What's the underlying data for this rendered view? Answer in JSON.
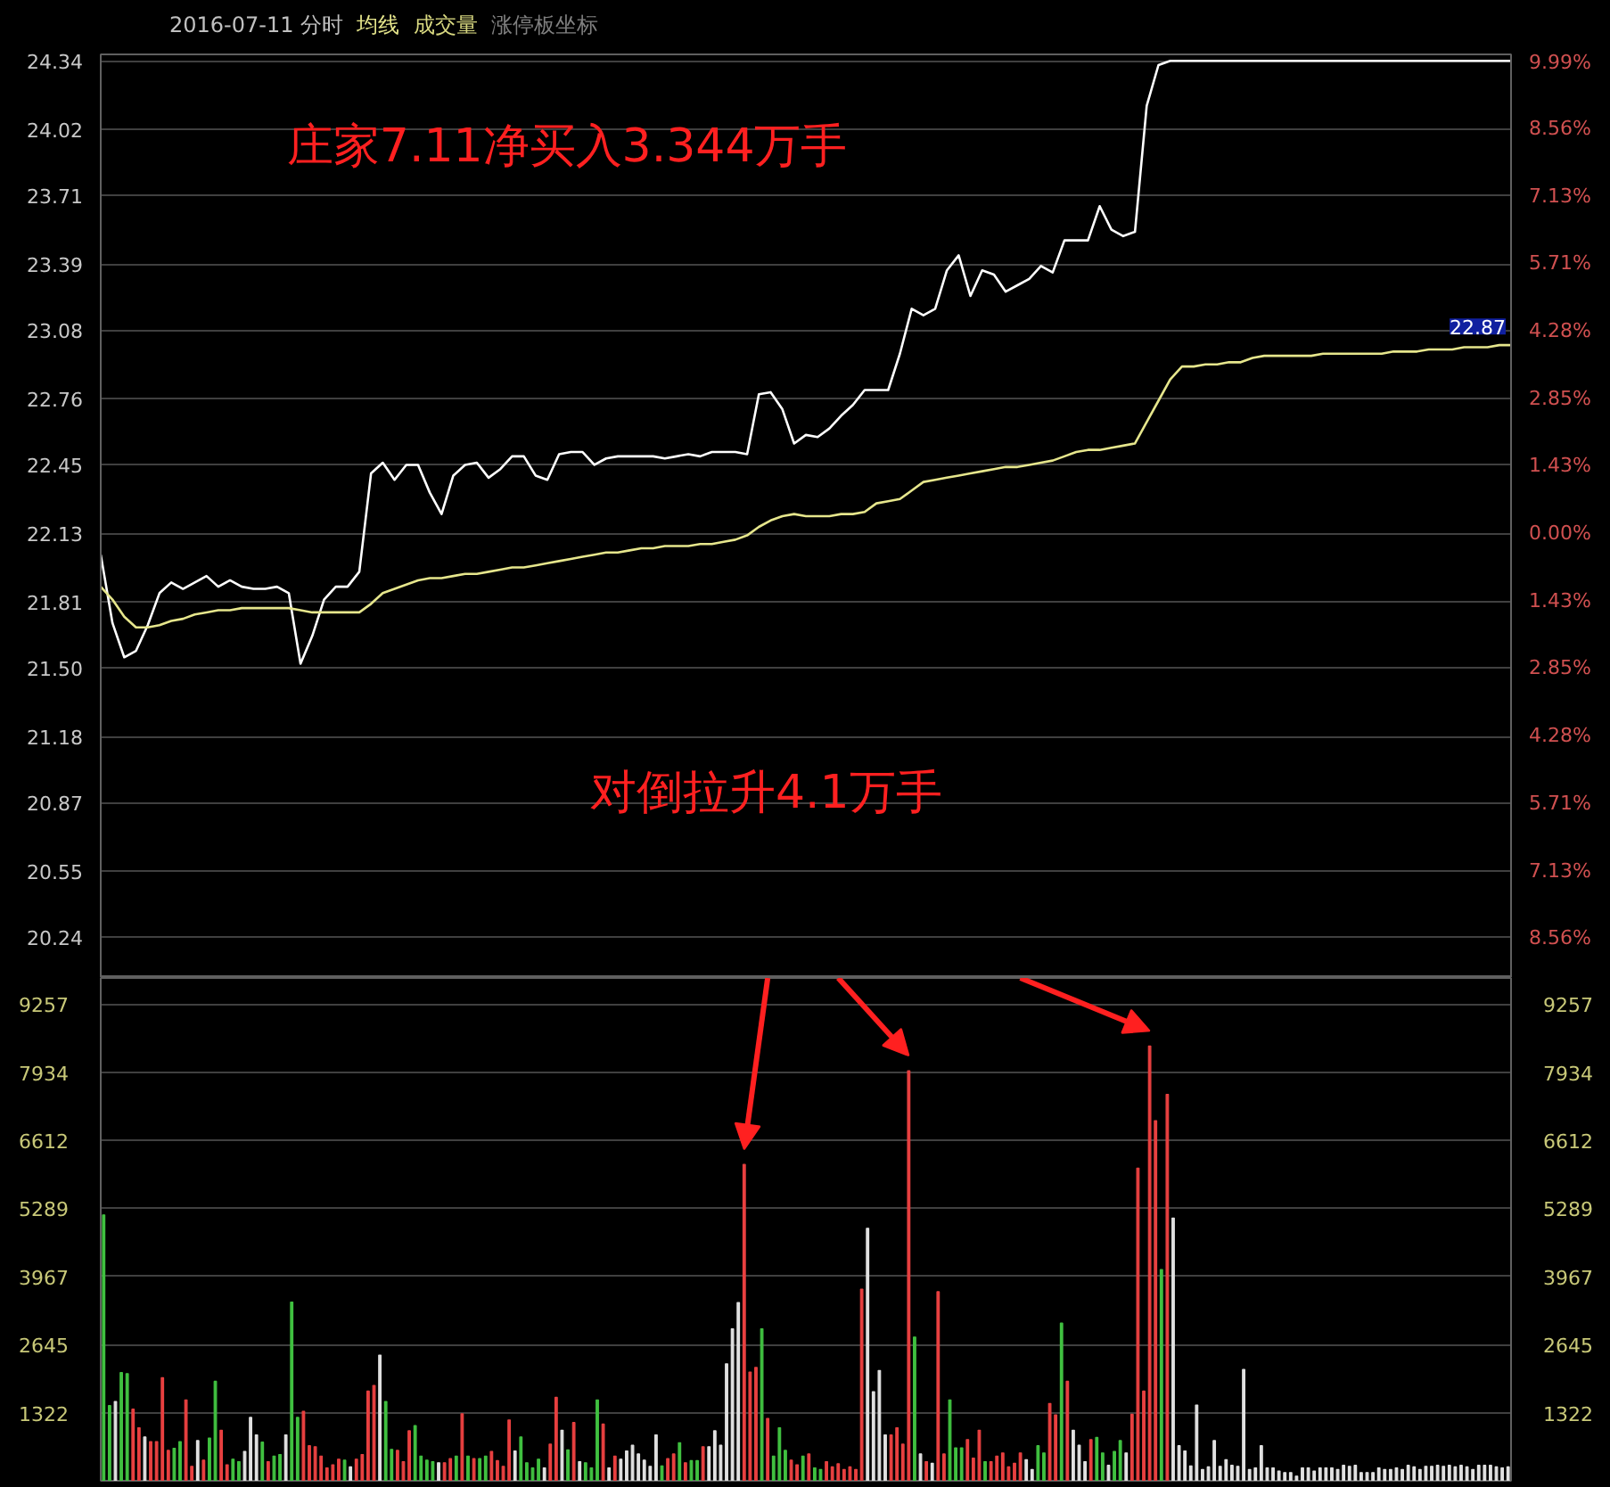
{
  "chart_data": [
    {
      "type": "line",
      "title": "2016-07-11 分时",
      "annotations": [
        "庄家7.11净买入3.344万手",
        "对倒拉升4.1万手",
        "涨停板坐标",
        "22.87"
      ],
      "categories": [
        null,
        null,
        null,
        null,
        null,
        null,
        null,
        null,
        null,
        null,
        null,
        null,
        null,
        null,
        null,
        null,
        null,
        null,
        null,
        null,
        null,
        null,
        null,
        null,
        null,
        null,
        null,
        null,
        null,
        null,
        null,
        null,
        null,
        null,
        null,
        null,
        null,
        null,
        null,
        null,
        null,
        null,
        null,
        null,
        null,
        null,
        null,
        null,
        null,
        null,
        null,
        null,
        null,
        null,
        null,
        null,
        null,
        null,
        null,
        null,
        null,
        null,
        null,
        null,
        null,
        null,
        null,
        null,
        null,
        null,
        null,
        null,
        null,
        null,
        null,
        null,
        null,
        null,
        null,
        null,
        null,
        null,
        null,
        null,
        null,
        null,
        null,
        null,
        null,
        null,
        null,
        null,
        null,
        null,
        null,
        null,
        null,
        null,
        null,
        null,
        null,
        null,
        null,
        null,
        null,
        null,
        null,
        null,
        null,
        null,
        null,
        null,
        null,
        null,
        null,
        null,
        null,
        null,
        null,
        null,
        null
      ],
      "ylim": [
        20.05,
        24.37
      ],
      "yticks": [
        24.34,
        24.02,
        23.71,
        23.39,
        23.08,
        22.76,
        22.45,
        22.13,
        21.81,
        {
          "value": 21.5,
          "label": "21.50"
        },
        21.18,
        20.87,
        20.55,
        20.24
      ],
      "y2lim": [
        -9.4,
        10.12
      ],
      "y2ticks": [
        {
          "value": 9.99,
          "label": "9.99%"
        },
        {
          "value": 8.56,
          "label": "8.56%"
        },
        {
          "value": 7.13,
          "label": "7.13%"
        },
        {
          "value": 5.71,
          "label": "5.71%"
        },
        {
          "value": 4.28,
          "label": "4.28%"
        },
        {
          "value": 2.85,
          "label": "2.85%"
        },
        {
          "value": 1.43,
          "label": "1.43%"
        },
        {
          "value": 0,
          "label": "0.00%"
        },
        {
          "value": -1.43,
          "label": "1.43%"
        },
        {
          "value": -2.85,
          "label": "2.85%"
        },
        {
          "value": -4.28,
          "label": "4.28%"
        },
        {
          "value": -5.71,
          "label": "5.71%"
        },
        {
          "value": -7.13,
          "label": "7.13%"
        },
        {
          "value": -8.56,
          "label": "8.56%"
        }
      ],
      "grid": "y",
      "tick_labels": "y",
      "series": [
        {
          "color": "#ffffff",
          "values": [
            22.03,
            21.71,
            21.55,
            21.58,
            21.7,
            21.85,
            21.9,
            21.87,
            21.9,
            21.93,
            21.88,
            21.91,
            21.88,
            21.87,
            21.87,
            21.88,
            21.85,
            21.52,
            21.65,
            21.82,
            21.88,
            21.88,
            21.95,
            22.41,
            22.46,
            22.38,
            22.45,
            22.45,
            22.32,
            22.22,
            22.4,
            22.45,
            22.46,
            22.39,
            22.43,
            22.49,
            22.49,
            22.4,
            22.38,
            22.5,
            22.51,
            22.51,
            22.45,
            22.48,
            22.49,
            22.49,
            22.49,
            22.49,
            22.48,
            22.49,
            22.5,
            22.49,
            22.51,
            22.51,
            22.51,
            22.5,
            22.78,
            22.79,
            22.71,
            22.55,
            22.59,
            22.58,
            22.62,
            22.68,
            22.73,
            22.8,
            22.8,
            22.8,
            22.97,
            23.18,
            23.15,
            23.18,
            23.36,
            23.43,
            23.24,
            23.36,
            23.34,
            23.26,
            23.29,
            23.32,
            23.38,
            23.35,
            23.5,
            23.5,
            23.5,
            23.66,
            23.55,
            23.52,
            23.54,
            24.13,
            24.32,
            24.34,
            24.34,
            24.34,
            24.34,
            24.34,
            24.34,
            24.34,
            24.34,
            24.34,
            24.34,
            24.34,
            24.34,
            24.34,
            24.34,
            24.34,
            24.34,
            24.34,
            24.34,
            24.34,
            24.34,
            24.34,
            24.34,
            24.34,
            24.34,
            24.34,
            24.34,
            24.34,
            24.34,
            24.34,
            24.34
          ]
        },
        {
          "name": "均线",
          "color": "#e6e68c",
          "values": [
            21.88,
            21.82,
            21.74,
            21.69,
            21.69,
            21.7,
            21.72,
            21.73,
            21.75,
            21.76,
            21.77,
            21.77,
            21.78,
            21.78,
            21.78,
            21.78,
            21.78,
            21.77,
            21.76,
            21.76,
            21.76,
            21.76,
            21.76,
            21.8,
            21.85,
            21.87,
            21.89,
            21.91,
            21.92,
            21.92,
            21.93,
            21.94,
            21.94,
            21.95,
            21.96,
            21.97,
            21.97,
            21.98,
            21.99,
            22.0,
            22.01,
            22.02,
            22.03,
            22.04,
            22.04,
            22.05,
            22.06,
            22.06,
            22.07,
            22.07,
            22.07,
            22.08,
            22.08,
            22.09,
            22.1,
            22.12,
            22.16,
            22.19,
            22.21,
            22.22,
            22.21,
            22.21,
            22.21,
            22.22,
            22.22,
            22.23,
            22.27,
            22.28,
            22.29,
            22.33,
            22.37,
            22.38,
            22.39,
            22.4,
            22.41,
            22.42,
            22.43,
            22.44,
            22.44,
            22.45,
            22.46,
            22.47,
            22.49,
            22.51,
            22.52,
            22.52,
            22.53,
            22.54,
            22.55,
            22.65,
            22.75,
            22.85,
            22.91,
            22.91,
            22.92,
            22.92,
            22.93,
            22.93,
            22.95,
            22.96,
            22.96,
            22.96,
            22.96,
            22.96,
            22.97,
            22.97,
            22.97,
            22.97,
            22.97,
            22.97,
            22.98,
            22.98,
            22.98,
            22.99,
            22.99,
            22.99,
            23.0,
            23.0,
            23.0,
            23.01,
            23.01
          ]
        }
      ]
    },
    {
      "type": "bar",
      "categories": [
        null,
        null,
        null,
        null,
        null,
        null,
        null,
        null,
        null,
        null,
        null,
        null,
        null,
        null,
        null,
        null,
        null,
        null,
        null,
        null,
        null,
        null,
        null,
        null,
        null,
        null,
        null,
        null,
        null,
        null,
        null,
        null,
        null,
        null,
        null,
        null,
        null,
        null,
        null,
        null,
        null,
        null,
        null,
        null,
        null,
        null,
        null,
        null,
        null,
        null,
        null,
        null,
        null,
        null,
        null,
        null,
        null,
        null,
        null,
        null,
        null,
        null,
        null,
        null,
        null,
        null,
        null,
        null,
        null,
        null,
        null,
        null,
        null,
        null,
        null,
        null,
        null,
        null,
        null,
        null,
        null,
        null,
        null,
        null,
        null,
        null,
        null,
        null,
        null,
        null,
        null,
        null,
        null,
        null,
        null,
        null,
        null,
        null,
        null,
        null,
        null,
        null,
        null,
        null,
        null,
        null,
        null,
        null,
        null,
        null,
        null,
        null,
        null,
        null,
        null,
        null,
        null,
        null,
        null,
        null,
        null,
        null,
        null,
        null,
        null,
        null,
        null,
        null,
        null,
        null,
        null,
        null,
        null,
        null,
        null,
        null,
        null,
        null,
        null,
        null,
        null,
        null,
        null,
        null,
        null,
        null,
        null,
        null,
        null,
        null,
        null,
        null,
        null,
        null,
        null,
        null,
        null,
        null,
        null,
        null,
        null,
        null,
        null,
        null,
        null,
        null,
        null,
        null,
        null,
        null,
        null,
        null,
        null,
        null,
        null,
        null,
        null,
        null,
        null,
        null,
        null,
        null,
        null,
        null,
        null,
        null,
        null,
        null,
        null,
        null,
        null,
        null,
        null,
        null,
        null,
        null,
        null,
        null,
        null,
        null,
        null,
        null,
        null,
        null,
        null,
        null,
        null,
        null,
        null,
        null,
        null,
        null,
        null,
        null,
        null,
        null,
        null,
        null,
        null,
        null,
        null,
        null,
        null,
        null,
        null,
        null,
        null,
        null,
        null,
        null,
        null,
        null,
        null,
        null,
        null,
        null,
        null,
        null,
        null,
        null
      ],
      "ylim": [
        0,
        9760
      ],
      "yticks": [
        1322,
        2645,
        3967,
        5289,
        6612,
        7934,
        9257
      ],
      "y2lim": [
        0,
        9760
      ],
      "y2ticks": [
        1322,
        2645,
        3967,
        5289,
        6612,
        7934,
        9257
      ],
      "grid": "y",
      "tick_labels": "y",
      "series": [
        {
          "name": "成交量",
          "color": "#d8d880",
          "values": [
            5160,
            1460,
            1540,
            2100,
            2080,
            1390,
            1030,
            850,
            760,
            760,
            2000,
            590,
            630,
            760,
            1570,
            280,
            780,
            400,
            830,
            1930,
            980,
            310,
            420,
            370,
            570,
            1230,
            890,
            750,
            370,
            480,
            510,
            890,
            3470,
            1230,
            1350,
            680,
            660,
            480,
            250,
            310,
            420,
            400,
            270,
            420,
            510,
            1740,
            1850,
            2440,
            1540,
            610,
            590,
            370,
            970,
            1070,
            480,
            400,
            370,
            350,
            350,
            430,
            480,
            1300,
            480,
            430,
            430,
            480,
            570,
            390,
            280,
            1180,
            580,
            850,
            350,
            250,
            420,
            250,
            710,
            1620,
            980,
            600,
            1130,
            370,
            350,
            250,
            1570,
            1100,
            250,
            480,
            420,
            580,
            690,
            520,
            400,
            280,
            890,
            290,
            430,
            520,
            740,
            350,
            390,
            390,
            660,
            660,
            970,
            690,
            2270,
            2950,
            3460,
            6140,
            2110,
            2200,
            2950,
            1210,
            480,
            1030,
            590,
            400,
            310,
            480,
            520,
            250,
            220,
            370,
            270,
            330,
            220,
            270,
            220,
            3720,
            4900,
            1730,
            2140,
            890,
            890,
            1030,
            710,
            7960,
            2790,
            520,
            370,
            340,
            3670,
            520,
            1570,
            640,
            640,
            800,
            440,
            980,
            370,
            370,
            480,
            540,
            270,
            340,
            540,
            410,
            220,
            680,
            540,
            1500,
            1280,
            3060,
            1930,
            980,
            690,
            370,
            800,
            840,
            540,
            300,
            570,
            780,
            540,
            1290,
            6070,
            1740,
            8440,
            6990,
            4100,
            7500,
            5100,
            680,
            580,
            290,
            1470,
            220,
            270,
            780,
            280,
            410,
            300,
            280,
            2160,
            220,
            250,
            680,
            250,
            250,
            190,
            160,
            160,
            90,
            250,
            250,
            190,
            250,
            250,
            250,
            220,
            300,
            280,
            300,
            160,
            160,
            160,
            250,
            220,
            220,
            250,
            220,
            300,
            270,
            220,
            280,
            280,
            300,
            280,
            300,
            270,
            300,
            270,
            220,
            300,
            300,
            300,
            270,
            250,
            270
          ],
          "colors": [
            "#40c040",
            "#40c040",
            "#e0e0e0",
            "#40c040",
            "#40c040",
            "#e84040",
            "#e84040",
            "#e0e0e0",
            "#e84040",
            "#e84040",
            "#e84040",
            "#e84040",
            "#40c040",
            "#40c040",
            "#e84040",
            "#e84040",
            "#e0e0e0",
            "#e84040",
            "#40c040",
            "#40c040",
            "#e84040",
            "#e84040",
            "#40c040",
            "#40c040",
            "#e0e0e0",
            "#e0e0e0",
            "#e0e0e0",
            "#40c040",
            "#e84040",
            "#40c040",
            "#40c040",
            "#e0e0e0",
            "#40c040",
            "#40c040",
            "#e84040",
            "#e84040",
            "#e84040",
            "#e84040",
            "#e84040",
            "#e84040",
            "#e84040",
            "#40c040",
            "#e0e0e0",
            "#e84040",
            "#e84040",
            "#e84040",
            "#e84040",
            "#e0e0e0",
            "#40c040",
            "#40c040",
            "#e84040",
            "#e84040",
            "#e84040",
            "#40c040",
            "#40c040",
            "#40c040",
            "#40c040",
            "#e0e0e0",
            "#e84040",
            "#e84040",
            "#40c040",
            "#e84040",
            "#40c040",
            "#e84040",
            "#40c040",
            "#40c040",
            "#e84040",
            "#e84040",
            "#e84040",
            "#e84040",
            "#e0e0e0",
            "#40c040",
            "#40c040",
            "#40c040",
            "#40c040",
            "#e0e0e0",
            "#e84040",
            "#e84040",
            "#e0e0e0",
            "#40c040",
            "#e84040",
            "#e0e0e0",
            "#40c040",
            "#40c040",
            "#40c040",
            "#e84040",
            "#e0e0e0",
            "#e84040",
            "#e0e0e0",
            "#e0e0e0",
            "#e0e0e0",
            "#e0e0e0",
            "#e0e0e0",
            "#e0e0e0",
            "#e0e0e0",
            "#40c040",
            "#e84040",
            "#e84040",
            "#40c040",
            "#e84040",
            "#40c040",
            "#40c040",
            "#e84040",
            "#e0e0e0",
            "#e0e0e0",
            "#e0e0e0",
            "#e0e0e0",
            "#e0e0e0",
            "#e0e0e0",
            "#e84040",
            "#e84040",
            "#e84040",
            "#40c040",
            "#e84040",
            "#40c040",
            "#40c040",
            "#40c040",
            "#e84040",
            "#e84040",
            "#40c040",
            "#e84040",
            "#40c040",
            "#40c040",
            "#e84040",
            "#e84040",
            "#e84040",
            "#e84040",
            "#e84040",
            "#e84040",
            "#e84040",
            "#e0e0e0",
            "#e0e0e0",
            "#e0e0e0",
            "#e0e0e0",
            "#e84040",
            "#e84040",
            "#e84040",
            "#e84040",
            "#40c040",
            "#e0e0e0",
            "#e84040",
            "#e0e0e0",
            "#e84040",
            "#e84040",
            "#40c040",
            "#40c040",
            "#40c040",
            "#e84040",
            "#e84040",
            "#e84040",
            "#40c040",
            "#e84040",
            "#e84040",
            "#e84040",
            "#e84040",
            "#e84040",
            "#e84040",
            "#e0e0e0",
            "#e0e0e0",
            "#40c040",
            "#40c040",
            "#e84040",
            "#e84040",
            "#40c040",
            "#e84040",
            "#e0e0e0",
            "#e0e0e0",
            "#e0e0e0",
            "#e84040",
            "#40c040",
            "#40c040",
            "#e0e0e0",
            "#40c040",
            "#40c040",
            "#e0e0e0",
            "#e84040",
            "#e84040",
            "#e84040",
            "#e84040",
            "#e84040",
            "#40c040",
            "#e84040",
            "#e0e0e0",
            "#e0e0e0",
            "#e0e0e0",
            "#e0e0e0",
            "#e0e0e0",
            "#e0e0e0",
            "#e0e0e0",
            "#e0e0e0",
            "#e0e0e0",
            "#e0e0e0",
            "#e0e0e0",
            "#e0e0e0",
            "#e0e0e0",
            "#e0e0e0",
            "#e0e0e0",
            "#e0e0e0",
            "#e0e0e0",
            "#e0e0e0",
            "#e0e0e0",
            "#e0e0e0",
            "#e0e0e0",
            "#e0e0e0",
            "#e0e0e0",
            "#e0e0e0",
            "#e0e0e0",
            "#e0e0e0",
            "#e0e0e0",
            "#e0e0e0",
            "#e0e0e0",
            "#e0e0e0",
            "#e0e0e0",
            "#e0e0e0",
            "#e0e0e0",
            "#e0e0e0",
            "#e0e0e0",
            "#e0e0e0",
            "#e0e0e0",
            "#e0e0e0",
            "#e0e0e0",
            "#e0e0e0",
            "#e0e0e0",
            "#e0e0e0",
            "#e0e0e0",
            "#e0e0e0",
            "#e0e0e0",
            "#e0e0e0",
            "#e0e0e0",
            "#e0e0e0",
            "#e0e0e0",
            "#e0e0e0",
            "#e0e0e0",
            "#e0e0e0",
            "#e0e0e0",
            "#e0e0e0",
            "#e0e0e0",
            "#e0e0e0",
            "#e0e0e0",
            "#e0e0e0"
          ]
        }
      ]
    }
  ]
}
